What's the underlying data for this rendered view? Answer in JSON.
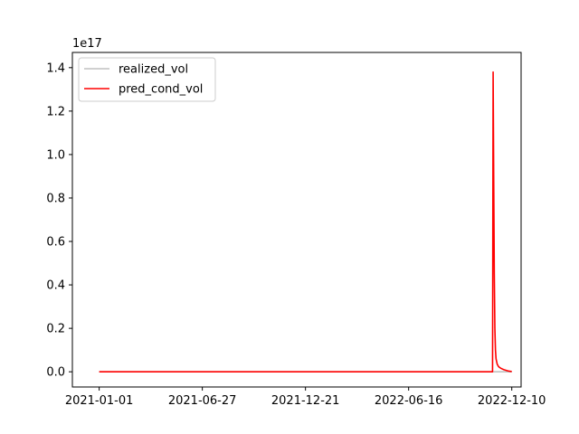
{
  "chart_data": {
    "type": "line",
    "title": "",
    "xlabel": "",
    "ylabel": "",
    "offset_label": "1e17",
    "x_ticks": [
      "2021-01-01",
      "2021-06-27",
      "2021-12-21",
      "2022-06-16",
      "2022-12-10"
    ],
    "y_ticks": [
      "0.0",
      "0.2",
      "0.4",
      "0.6",
      "0.8",
      "1.0",
      "1.2",
      "1.4"
    ],
    "xlim": [
      "2020-11-16",
      "2022-12-26"
    ],
    "ylim": [
      -0.07,
      1.47
    ],
    "y_scale_note": "values in units of 1e17",
    "grid": false,
    "legend_position": "upper-left",
    "series": [
      {
        "name": "realized_vol",
        "color": "#c0c0c0",
        "x": [
          "2021-01-01",
          "2022-12-10"
        ],
        "y": [
          0.0,
          0.0
        ]
      },
      {
        "name": "pred_cond_vol",
        "color": "#ff0000",
        "x": [
          "2021-01-01",
          "2022-11-07",
          "2022-11-08",
          "2022-11-09",
          "2022-11-10",
          "2022-11-11",
          "2022-11-12",
          "2022-11-13",
          "2022-11-15",
          "2022-11-17",
          "2022-11-19",
          "2022-11-22",
          "2022-11-26",
          "2022-12-01",
          "2022-12-05",
          "2022-12-10"
        ],
        "y": [
          0.0,
          0.0,
          1.38,
          0.9,
          0.45,
          0.2,
          0.1,
          0.06,
          0.035,
          0.025,
          0.02,
          0.015,
          0.01,
          0.006,
          0.003,
          0.001
        ]
      }
    ]
  }
}
